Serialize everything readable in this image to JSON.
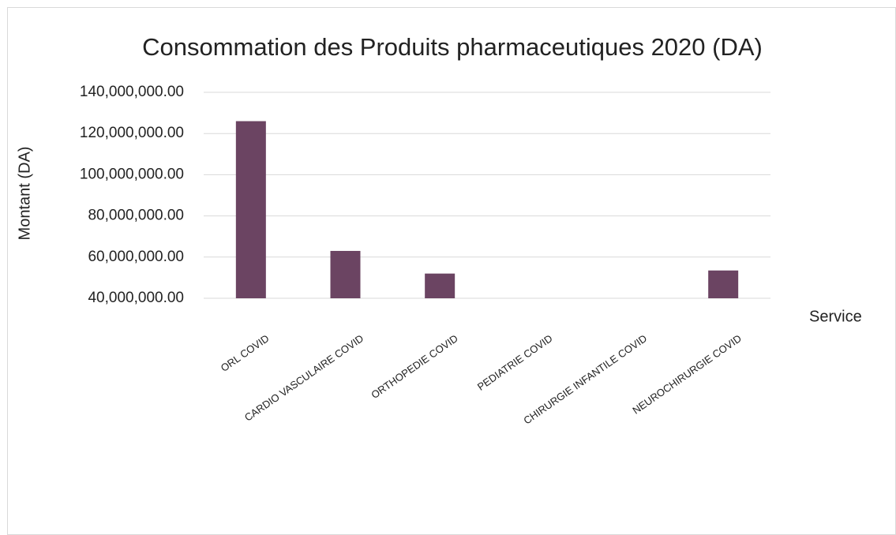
{
  "chart_data": {
    "type": "bar",
    "title": "Consommation des Produits pharmaceutiques 2020 (DA)",
    "y_label": "Montant (DA)",
    "x_label": "Service",
    "categories": [
      "ORL COVID",
      "CARDIO VASCULAIRE COVID",
      "ORTHOPEDIE COVID",
      "PEDIATRIE COVID",
      "CHIRURGIE INFANTILE COVID",
      "NEUROCHIRURGIE COVID"
    ],
    "values": [
      126000000,
      63000000,
      52000000,
      null,
      null,
      53500000
    ],
    "color": "#6b4462",
    "ylim": [
      40000000,
      140000000
    ],
    "yticks": [
      {
        "value": 40000000,
        "label": "40,000,000.00"
      },
      {
        "value": 60000000,
        "label": "60,000,000.00"
      },
      {
        "value": 80000000,
        "label": "80,000,000.00"
      },
      {
        "value": 100000000,
        "label": "100,000,000.00"
      },
      {
        "value": 120000000,
        "label": "120,000,000.00"
      },
      {
        "value": 140000000,
        "label": "140,000,000.00"
      }
    ],
    "grid": true
  }
}
